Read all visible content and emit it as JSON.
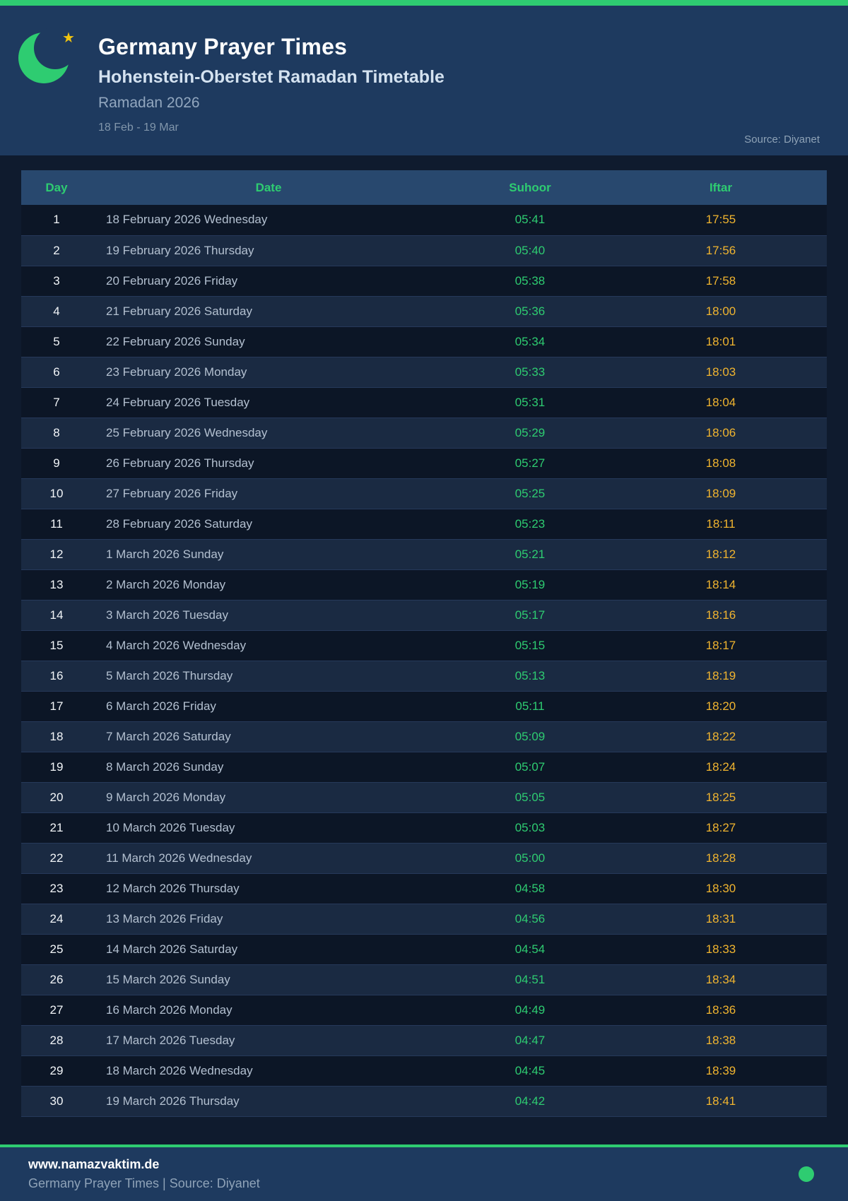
{
  "header": {
    "title": "Germany Prayer Times",
    "subtitle": "Hohenstein-Oberstet Ramadan Timetable",
    "season": "Ramadan 2026",
    "date_range": "18 Feb - 19 Mar",
    "source": "Source: Diyanet"
  },
  "icons": {
    "brand": "crescent-moon-icon",
    "brand_star": "star-icon",
    "footer_status": "green-dot-icon"
  },
  "colors": {
    "accent_green": "#2ecc71",
    "iftar_gold": "#f0b42f",
    "suhoor_green": "#2ecc71",
    "header_navy": "#1e3a5f",
    "page_bg": "#0f1b2e",
    "row_alt_bg": "#1a2a42",
    "table_header_bg": "#28486e",
    "star_gold": "#f1c40f"
  },
  "table": {
    "columns": [
      "Day",
      "Date",
      "Suhoor",
      "Iftar"
    ]
  },
  "rows": [
    {
      "day": "1",
      "date": "18 February 2026 Wednesday",
      "suhoor": "05:41",
      "iftar": "17:55"
    },
    {
      "day": "2",
      "date": "19 February 2026 Thursday",
      "suhoor": "05:40",
      "iftar": "17:56"
    },
    {
      "day": "3",
      "date": "20 February 2026 Friday",
      "suhoor": "05:38",
      "iftar": "17:58"
    },
    {
      "day": "4",
      "date": "21 February 2026 Saturday",
      "suhoor": "05:36",
      "iftar": "18:00"
    },
    {
      "day": "5",
      "date": "22 February 2026 Sunday",
      "suhoor": "05:34",
      "iftar": "18:01"
    },
    {
      "day": "6",
      "date": "23 February 2026 Monday",
      "suhoor": "05:33",
      "iftar": "18:03"
    },
    {
      "day": "7",
      "date": "24 February 2026 Tuesday",
      "suhoor": "05:31",
      "iftar": "18:04"
    },
    {
      "day": "8",
      "date": "25 February 2026 Wednesday",
      "suhoor": "05:29",
      "iftar": "18:06"
    },
    {
      "day": "9",
      "date": "26 February 2026 Thursday",
      "suhoor": "05:27",
      "iftar": "18:08"
    },
    {
      "day": "10",
      "date": "27 February 2026 Friday",
      "suhoor": "05:25",
      "iftar": "18:09"
    },
    {
      "day": "11",
      "date": "28 February 2026 Saturday",
      "suhoor": "05:23",
      "iftar": "18:11"
    },
    {
      "day": "12",
      "date": "1 March 2026 Sunday",
      "suhoor": "05:21",
      "iftar": "18:12"
    },
    {
      "day": "13",
      "date": "2 March 2026 Monday",
      "suhoor": "05:19",
      "iftar": "18:14"
    },
    {
      "day": "14",
      "date": "3 March 2026 Tuesday",
      "suhoor": "05:17",
      "iftar": "18:16"
    },
    {
      "day": "15",
      "date": "4 March 2026 Wednesday",
      "suhoor": "05:15",
      "iftar": "18:17"
    },
    {
      "day": "16",
      "date": "5 March 2026 Thursday",
      "suhoor": "05:13",
      "iftar": "18:19"
    },
    {
      "day": "17",
      "date": "6 March 2026 Friday",
      "suhoor": "05:11",
      "iftar": "18:20"
    },
    {
      "day": "18",
      "date": "7 March 2026 Saturday",
      "suhoor": "05:09",
      "iftar": "18:22"
    },
    {
      "day": "19",
      "date": "8 March 2026 Sunday",
      "suhoor": "05:07",
      "iftar": "18:24"
    },
    {
      "day": "20",
      "date": "9 March 2026 Monday",
      "suhoor": "05:05",
      "iftar": "18:25"
    },
    {
      "day": "21",
      "date": "10 March 2026 Tuesday",
      "suhoor": "05:03",
      "iftar": "18:27"
    },
    {
      "day": "22",
      "date": "11 March 2026 Wednesday",
      "suhoor": "05:00",
      "iftar": "18:28"
    },
    {
      "day": "23",
      "date": "12 March 2026 Thursday",
      "suhoor": "04:58",
      "iftar": "18:30"
    },
    {
      "day": "24",
      "date": "13 March 2026 Friday",
      "suhoor": "04:56",
      "iftar": "18:31"
    },
    {
      "day": "25",
      "date": "14 March 2026 Saturday",
      "suhoor": "04:54",
      "iftar": "18:33"
    },
    {
      "day": "26",
      "date": "15 March 2026 Sunday",
      "suhoor": "04:51",
      "iftar": "18:34"
    },
    {
      "day": "27",
      "date": "16 March 2026 Monday",
      "suhoor": "04:49",
      "iftar": "18:36"
    },
    {
      "day": "28",
      "date": "17 March 2026 Tuesday",
      "suhoor": "04:47",
      "iftar": "18:38"
    },
    {
      "day": "29",
      "date": "18 March 2026 Wednesday",
      "suhoor": "04:45",
      "iftar": "18:39"
    },
    {
      "day": "30",
      "date": "19 March 2026 Thursday",
      "suhoor": "04:42",
      "iftar": "18:41"
    }
  ],
  "footer": {
    "url": "www.namazvaktim.de",
    "tagline": "Germany Prayer Times | Source: Diyanet"
  }
}
